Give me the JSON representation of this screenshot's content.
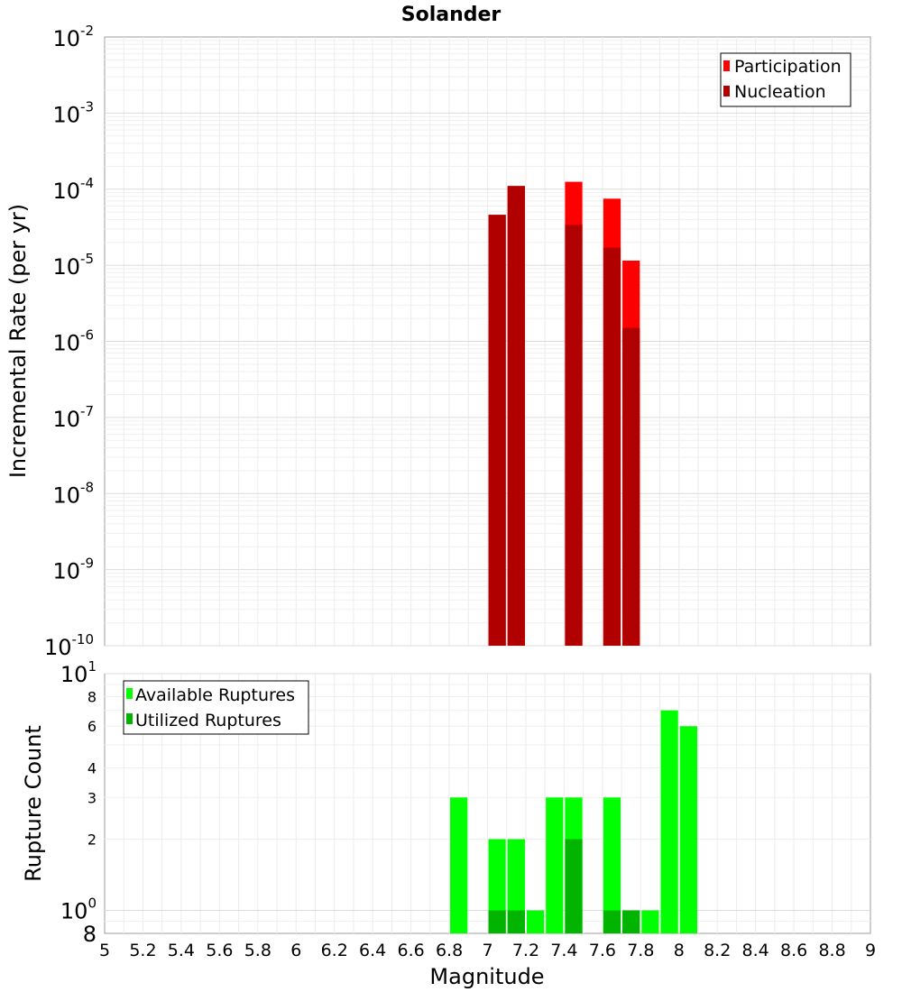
{
  "chart_data": [
    {
      "type": "bar",
      "title": "Solander",
      "ylabel": "Incremental Rate (per yr)",
      "y_scale": "log",
      "ylim": [
        1e-10,
        0.01
      ],
      "y_ticks": [
        {
          "mant": "10",
          "exp": "-2"
        },
        {
          "mant": "10",
          "exp": "-3"
        },
        {
          "mant": "10",
          "exp": "-4"
        },
        {
          "mant": "10",
          "exp": "-5"
        },
        {
          "mant": "10",
          "exp": "-6"
        },
        {
          "mant": "10",
          "exp": "-7"
        },
        {
          "mant": "10",
          "exp": "-8"
        },
        {
          "mant": "10",
          "exp": "-9"
        },
        {
          "mant": "10",
          "exp": "-10"
        }
      ],
      "xlim": [
        5,
        9
      ],
      "bin_width": 0.1,
      "legend_position": "top-right",
      "series": [
        {
          "name": "Participation",
          "color": "#ff0000",
          "x": [
            7.05,
            7.15,
            7.45,
            7.65,
            7.75
          ],
          "values": [
            4.6e-05,
            0.00011,
            0.000125,
            7.5e-05,
            1.15e-05
          ]
        },
        {
          "name": "Nucleation",
          "color": "#b00000",
          "x": [
            7.05,
            7.15,
            7.45,
            7.65,
            7.75
          ],
          "values": [
            4.6e-05,
            0.00011,
            3.4e-05,
            1.7e-05,
            1.5e-06
          ]
        }
      ]
    },
    {
      "type": "bar",
      "ylabel": "Rupture Count",
      "xlabel": "Magnitude",
      "y_scale": "log",
      "ylim": [
        0.8,
        10
      ],
      "y_ticks": [
        {
          "value": 10,
          "mant": "10",
          "exp": "1",
          "major": true
        },
        {
          "value": 8,
          "label": "8"
        },
        {
          "value": 6,
          "label": "6"
        },
        {
          "value": 4,
          "label": "4"
        },
        {
          "value": 3,
          "label": "3"
        },
        {
          "value": 2,
          "label": "2"
        },
        {
          "value": 1,
          "mant": "10",
          "exp": "0",
          "major": true
        },
        {
          "value": 0.8,
          "label": "8",
          "major": true
        }
      ],
      "x_ticks": [
        "5",
        "5.2",
        "5.4",
        "5.6",
        "5.8",
        "6",
        "6.2",
        "6.4",
        "6.6",
        "6.8",
        "7",
        "7.2",
        "7.4",
        "7.6",
        "7.8",
        "8",
        "8.2",
        "8.4",
        "8.6",
        "8.8",
        "9"
      ],
      "xlim": [
        5,
        9
      ],
      "bin_width": 0.1,
      "legend_position": "top-left",
      "series": [
        {
          "name": "Available Ruptures",
          "color": "#00ff00",
          "x": [
            6.85,
            7.05,
            7.15,
            7.25,
            7.35,
            7.45,
            7.65,
            7.75,
            7.85,
            7.95,
            8.05
          ],
          "values": [
            3,
            2,
            2,
            1,
            3,
            3,
            3,
            1,
            1,
            7,
            6
          ]
        },
        {
          "name": "Utilized Ruptures",
          "color": "#00b400",
          "x": [
            7.05,
            7.15,
            7.45,
            7.65,
            7.75
          ],
          "values": [
            1,
            1,
            2,
            1,
            1
          ]
        }
      ]
    }
  ]
}
